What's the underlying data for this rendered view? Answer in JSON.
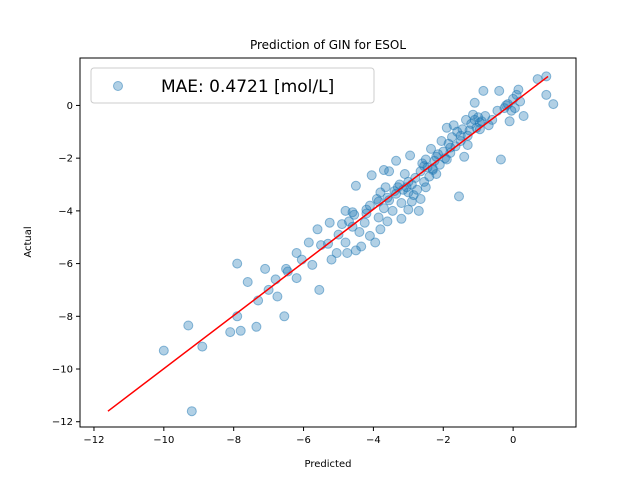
{
  "chart_data": {
    "type": "scatter",
    "title": "Prediction of GIN for ESOL",
    "xlabel": "Predicted",
    "ylabel": "Actual",
    "xlim": [
      -12.4,
      1.8
    ],
    "ylim": [
      -12.2,
      1.8
    ],
    "xticks": [
      -12,
      -10,
      -8,
      -6,
      -4,
      -2,
      0
    ],
    "yticks": [
      -12,
      -10,
      -8,
      -6,
      -4,
      -2,
      0
    ],
    "grid": false,
    "legend": {
      "placement": "top-left",
      "entries": [
        "MAE: 0.4721 [mol/L]"
      ]
    },
    "colors": {
      "points": "#1f77b4",
      "fit_line": "#ff0000"
    },
    "fit_line": {
      "x": [
        -11.6,
        1.0
      ],
      "y": [
        -11.6,
        1.1
      ]
    },
    "series": [
      {
        "name": "MAE: 0.4721 [mol/L]",
        "points": [
          [
            -10.0,
            -9.3
          ],
          [
            -9.3,
            -8.35
          ],
          [
            -8.9,
            -9.15
          ],
          [
            -9.2,
            -11.6
          ],
          [
            -8.1,
            -8.6
          ],
          [
            -7.9,
            -8.0
          ],
          [
            -7.8,
            -8.55
          ],
          [
            -7.35,
            -8.4
          ],
          [
            -7.9,
            -6.0
          ],
          [
            -7.6,
            -6.7
          ],
          [
            -7.3,
            -7.4
          ],
          [
            -7.1,
            -6.2
          ],
          [
            -7.0,
            -7.0
          ],
          [
            -6.75,
            -7.25
          ],
          [
            -6.8,
            -6.6
          ],
          [
            -6.55,
            -8.0
          ],
          [
            -6.5,
            -6.2
          ],
          [
            -6.45,
            -6.3
          ],
          [
            -6.2,
            -6.55
          ],
          [
            -6.2,
            -5.6
          ],
          [
            -6.05,
            -5.85
          ],
          [
            -5.85,
            -5.2
          ],
          [
            -5.75,
            -6.05
          ],
          [
            -5.55,
            -7.0
          ],
          [
            -5.6,
            -4.7
          ],
          [
            -5.5,
            -5.3
          ],
          [
            -5.3,
            -5.25
          ],
          [
            -5.25,
            -4.45
          ],
          [
            -5.2,
            -5.85
          ],
          [
            -5.05,
            -5.6
          ],
          [
            -4.9,
            -4.5
          ],
          [
            -4.8,
            -4.0
          ],
          [
            -4.8,
            -5.2
          ],
          [
            -4.75,
            -5.6
          ],
          [
            -4.6,
            -4.05
          ],
          [
            -4.6,
            -4.6
          ],
          [
            -4.5,
            -5.5
          ],
          [
            -4.5,
            -3.05
          ],
          [
            -4.4,
            -4.8
          ],
          [
            -4.35,
            -5.35
          ],
          [
            -4.25,
            -4.45
          ],
          [
            -4.2,
            -4.1
          ],
          [
            -4.1,
            -4.95
          ],
          [
            -4.1,
            -3.8
          ],
          [
            -4.05,
            -2.65
          ],
          [
            -3.95,
            -5.2
          ],
          [
            -3.9,
            -3.55
          ],
          [
            -3.85,
            -4.25
          ],
          [
            -3.8,
            -4.7
          ],
          [
            -3.8,
            -3.3
          ],
          [
            -3.7,
            -3.9
          ],
          [
            -3.7,
            -2.45
          ],
          [
            -3.65,
            -3.1
          ],
          [
            -3.6,
            -4.4
          ],
          [
            -3.55,
            -3.6
          ],
          [
            -3.55,
            -2.5
          ],
          [
            -3.45,
            -4.0
          ],
          [
            -3.4,
            -3.25
          ],
          [
            -3.35,
            -3.35
          ],
          [
            -3.35,
            -2.1
          ],
          [
            -3.25,
            -3.0
          ],
          [
            -3.2,
            -4.3
          ],
          [
            -3.2,
            -3.7
          ],
          [
            -3.15,
            -3.2
          ],
          [
            -3.1,
            -2.6
          ],
          [
            -3.05,
            -3.1
          ],
          [
            -3.0,
            -3.95
          ],
          [
            -3.0,
            -2.9
          ],
          [
            -2.95,
            -1.9
          ],
          [
            -2.9,
            -3.65
          ],
          [
            -2.85,
            -3.4
          ],
          [
            -2.8,
            -2.75
          ],
          [
            -2.75,
            -3.2
          ],
          [
            -2.7,
            -4.0
          ],
          [
            -2.65,
            -2.5
          ],
          [
            -2.65,
            -3.55
          ],
          [
            -2.6,
            -2.2
          ],
          [
            -2.55,
            -2.9
          ],
          [
            -2.5,
            -2.05
          ],
          [
            -2.5,
            -3.1
          ],
          [
            -2.45,
            -2.35
          ],
          [
            -2.4,
            -2.7
          ],
          [
            -2.35,
            -1.65
          ],
          [
            -2.3,
            -2.4
          ],
          [
            -2.25,
            -2.1
          ],
          [
            -2.2,
            -2.6
          ],
          [
            -2.15,
            -1.85
          ],
          [
            -2.1,
            -2.25
          ],
          [
            -2.05,
            -1.35
          ],
          [
            -2.0,
            -1.75
          ],
          [
            -1.95,
            -2.0
          ],
          [
            -1.9,
            -0.85
          ],
          [
            -1.85,
            -1.45
          ],
          [
            -1.8,
            -1.8
          ],
          [
            -1.75,
            -1.2
          ],
          [
            -1.7,
            -0.75
          ],
          [
            -1.65,
            -1.55
          ],
          [
            -1.6,
            -1.0
          ],
          [
            -1.55,
            -3.45
          ],
          [
            -1.5,
            -1.35
          ],
          [
            -1.45,
            -0.9
          ],
          [
            -1.4,
            -1.95
          ],
          [
            -1.35,
            -0.55
          ],
          [
            -1.3,
            -1.15
          ],
          [
            -1.25,
            -0.95
          ],
          [
            -1.2,
            -0.7
          ],
          [
            -1.15,
            -0.35
          ],
          [
            -1.1,
            -0.55
          ],
          [
            -1.05,
            -0.85
          ],
          [
            -1.0,
            -0.45
          ],
          [
            -0.95,
            -0.65
          ],
          [
            -0.9,
            -0.6
          ],
          [
            -0.85,
            0.55
          ],
          [
            -0.8,
            -0.4
          ],
          [
            -0.7,
            -0.75
          ],
          [
            -0.6,
            -0.55
          ],
          [
            -0.45,
            -0.2
          ],
          [
            -0.4,
            0.55
          ],
          [
            -0.35,
            -2.05
          ],
          [
            -0.25,
            -0.1
          ],
          [
            -0.2,
            0.0
          ],
          [
            -0.15,
            0.05
          ],
          [
            -0.1,
            -0.6
          ],
          [
            -0.05,
            -0.2
          ],
          [
            0.0,
            0.25
          ],
          [
            0.05,
            -0.1
          ],
          [
            0.1,
            0.4
          ],
          [
            0.15,
            0.6
          ],
          [
            0.2,
            0.15
          ],
          [
            0.3,
            -0.4
          ],
          [
            0.7,
            1.0
          ],
          [
            0.95,
            0.4
          ],
          [
            0.95,
            1.1
          ],
          [
            1.15,
            0.05
          ],
          [
            -1.1,
            0.1
          ],
          [
            -2.9,
            -3.0
          ],
          [
            -3.3,
            -3.1
          ],
          [
            -4.2,
            -3.95
          ],
          [
            -2.3,
            -2.45
          ],
          [
            -1.8,
            -1.6
          ],
          [
            -1.5,
            -1.15
          ],
          [
            -3.6,
            -3.5
          ],
          [
            -2.55,
            -2.3
          ],
          [
            -3.0,
            -3.3
          ],
          [
            -4.55,
            -4.15
          ],
          [
            -5.0,
            -4.9
          ],
          [
            -4.7,
            -4.4
          ],
          [
            -2.2,
            -1.95
          ],
          [
            -1.9,
            -2.05
          ],
          [
            -1.3,
            -1.5
          ],
          [
            -0.95,
            -0.9
          ],
          [
            -3.85,
            -3.65
          ]
        ]
      }
    ]
  }
}
